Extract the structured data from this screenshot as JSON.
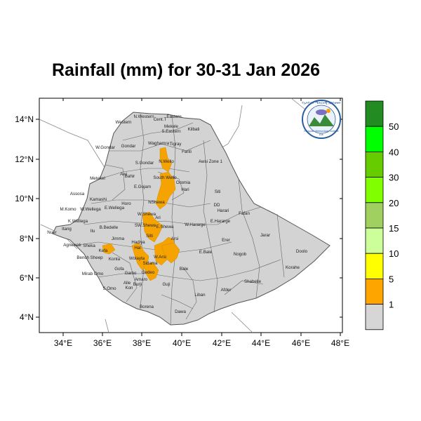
{
  "title": "Rainfall (mm) for 30-31 Jan 2026",
  "map": {
    "x_ticks": [
      "34°E",
      "36°E",
      "38°E",
      "40°E",
      "42°E",
      "44°E",
      "46°E",
      "48°E"
    ],
    "y_ticks": [
      "14°N",
      "12°N",
      "10°N",
      "8°N",
      "6°N",
      "4°N"
    ],
    "country_color": "#d3d3d3",
    "border_color": "#555555",
    "rain_color": "#f5a300",
    "regions": [
      "Western",
      "N.Western",
      "Cent.T",
      "Eastern",
      "Mekele",
      "S.Eastern",
      "Kilbati",
      "W.Gondar",
      "Gondar",
      "Waghamra",
      "Tigray",
      "S.Gondar",
      "N.Wello",
      "Fanti",
      "Awsi Zone 1",
      "Metekel",
      "Awi",
      "Bahir",
      "E.Gojam",
      "South Wello",
      "Oromia",
      "Hari",
      "Siti",
      "Assosa",
      "Kamashi",
      "Horo",
      "NShewa",
      "DD",
      "Harari",
      "Fafan",
      "M.Komo",
      "W.Wellega",
      "E.Wellega",
      "W.Shewa",
      "W.Hararge",
      "K.Wellega",
      "Ilu",
      "B.Bedelle",
      "SW.Shewa",
      "Ari",
      "E.Shewa",
      "E.Hararge",
      "Nuer",
      "Itang",
      "Jimma",
      "Silti",
      "Arsi",
      "Erer",
      "Jarar",
      "Agnewak",
      "Sheka",
      "Kefa",
      "Hadiya",
      "Hal",
      "Bench Sheep",
      "Konta",
      "Wolayta",
      "W.Arsi",
      "E.Bale",
      "Nogob",
      "Doolo",
      "Mirab Omo",
      "Gofa",
      "Gamo",
      "Sidama",
      "Gedeo",
      "Bale",
      "Korahe",
      "S.Omo",
      "Alle",
      "Burji",
      "Amaro",
      "Guji",
      "Shabelle",
      "Liban",
      "Afder",
      "Borena",
      "Dawa",
      "Kon"
    ]
  },
  "legend": {
    "values": [
      "1",
      "5",
      "10",
      "15",
      "20",
      "30",
      "40",
      "50"
    ],
    "colors": [
      "#d6d6d6",
      "#ffa500",
      "#ffff00",
      "#ccff99",
      "#a0d060",
      "#80ff00",
      "#66cc00",
      "#00ff00",
      "#228b22"
    ]
  },
  "logo": {
    "header": "የኢትዮጵያ ሜትሮሎጂ ኢንስቲቱት",
    "name": "Ethiopian Meteorology Institute",
    "sub": "EMI"
  }
}
